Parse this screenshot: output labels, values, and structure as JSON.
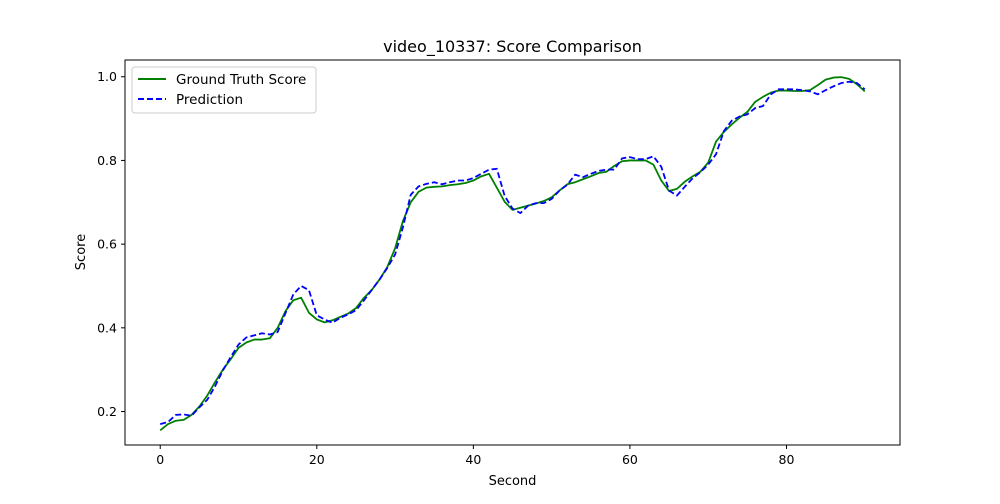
{
  "chart_data": {
    "type": "line",
    "title": "video_10337: Score Comparison",
    "xlabel": "Second",
    "ylabel": "Score",
    "xlim": [
      -4.5,
      94.5
    ],
    "ylim": [
      0.12,
      1.04
    ],
    "xticks": [
      0,
      20,
      40,
      60,
      80
    ],
    "yticks": [
      0.2,
      0.4,
      0.6,
      0.8,
      1.0
    ],
    "xtick_labels": [
      "0",
      "20",
      "40",
      "60",
      "80"
    ],
    "ytick_labels": [
      "0.2",
      "0.4",
      "0.6",
      "0.8",
      "1.0"
    ],
    "grid": false,
    "legend_position": "upper-left",
    "series": [
      {
        "name": "Ground Truth Score",
        "color": "#008000",
        "style": "solid",
        "points": [
          [
            0,
            0.155
          ],
          [
            1,
            0.17
          ],
          [
            2,
            0.178
          ],
          [
            3,
            0.18
          ],
          [
            4,
            0.192
          ],
          [
            5,
            0.212
          ],
          [
            6,
            0.238
          ],
          [
            7,
            0.27
          ],
          [
            8,
            0.3
          ],
          [
            9,
            0.325
          ],
          [
            10,
            0.352
          ],
          [
            11,
            0.365
          ],
          [
            12,
            0.372
          ],
          [
            13,
            0.372
          ],
          [
            14,
            0.375
          ],
          [
            15,
            0.4
          ],
          [
            16,
            0.44
          ],
          [
            17,
            0.466
          ],
          [
            18,
            0.472
          ],
          [
            19,
            0.436
          ],
          [
            20,
            0.42
          ],
          [
            21,
            0.413
          ],
          [
            22,
            0.418
          ],
          [
            23,
            0.426
          ],
          [
            24,
            0.434
          ],
          [
            25,
            0.447
          ],
          [
            26,
            0.471
          ],
          [
            27,
            0.49
          ],
          [
            28,
            0.515
          ],
          [
            29,
            0.545
          ],
          [
            30,
            0.59
          ],
          [
            31,
            0.655
          ],
          [
            32,
            0.7
          ],
          [
            33,
            0.725
          ],
          [
            34,
            0.735
          ],
          [
            35,
            0.737
          ],
          [
            36,
            0.738
          ],
          [
            37,
            0.741
          ],
          [
            38,
            0.743
          ],
          [
            39,
            0.746
          ],
          [
            40,
            0.752
          ],
          [
            41,
            0.762
          ],
          [
            42,
            0.768
          ],
          [
            43,
            0.735
          ],
          [
            44,
            0.701
          ],
          [
            45,
            0.682
          ],
          [
            46,
            0.687
          ],
          [
            47,
            0.692
          ],
          [
            48,
            0.697
          ],
          [
            49,
            0.703
          ],
          [
            50,
            0.712
          ],
          [
            51,
            0.728
          ],
          [
            52,
            0.743
          ],
          [
            53,
            0.748
          ],
          [
            54,
            0.755
          ],
          [
            55,
            0.762
          ],
          [
            56,
            0.77
          ],
          [
            57,
            0.773
          ],
          [
            58,
            0.787
          ],
          [
            59,
            0.798
          ],
          [
            60,
            0.8
          ],
          [
            61,
            0.8
          ],
          [
            62,
            0.8
          ],
          [
            63,
            0.79
          ],
          [
            64,
            0.752
          ],
          [
            65,
            0.727
          ],
          [
            66,
            0.732
          ],
          [
            67,
            0.749
          ],
          [
            68,
            0.762
          ],
          [
            69,
            0.773
          ],
          [
            70,
            0.795
          ],
          [
            71,
            0.845
          ],
          [
            72,
            0.868
          ],
          [
            73,
            0.886
          ],
          [
            74,
            0.902
          ],
          [
            75,
            0.916
          ],
          [
            76,
            0.94
          ],
          [
            77,
            0.952
          ],
          [
            78,
            0.962
          ],
          [
            79,
            0.967
          ],
          [
            80,
            0.967
          ],
          [
            81,
            0.966
          ],
          [
            82,
            0.966
          ],
          [
            83,
            0.968
          ],
          [
            84,
            0.98
          ],
          [
            85,
            0.993
          ],
          [
            86,
            0.998
          ],
          [
            87,
            0.999
          ],
          [
            88,
            0.995
          ],
          [
            89,
            0.982
          ],
          [
            90,
            0.965
          ]
        ]
      },
      {
        "name": "Prediction",
        "color": "#0000ff",
        "style": "dashed",
        "points": [
          [
            0,
            0.17
          ],
          [
            1,
            0.175
          ],
          [
            2,
            0.192
          ],
          [
            3,
            0.193
          ],
          [
            4,
            0.19
          ],
          [
            5,
            0.21
          ],
          [
            6,
            0.228
          ],
          [
            7,
            0.26
          ],
          [
            8,
            0.298
          ],
          [
            9,
            0.33
          ],
          [
            10,
            0.36
          ],
          [
            11,
            0.377
          ],
          [
            12,
            0.382
          ],
          [
            13,
            0.387
          ],
          [
            14,
            0.384
          ],
          [
            15,
            0.39
          ],
          [
            16,
            0.435
          ],
          [
            17,
            0.48
          ],
          [
            18,
            0.5
          ],
          [
            19,
            0.49
          ],
          [
            20,
            0.43
          ],
          [
            21,
            0.42
          ],
          [
            22,
            0.412
          ],
          [
            23,
            0.424
          ],
          [
            24,
            0.432
          ],
          [
            25,
            0.442
          ],
          [
            26,
            0.465
          ],
          [
            27,
            0.49
          ],
          [
            28,
            0.515
          ],
          [
            29,
            0.543
          ],
          [
            30,
            0.575
          ],
          [
            31,
            0.64
          ],
          [
            32,
            0.718
          ],
          [
            33,
            0.738
          ],
          [
            34,
            0.744
          ],
          [
            35,
            0.748
          ],
          [
            36,
            0.743
          ],
          [
            37,
            0.748
          ],
          [
            38,
            0.752
          ],
          [
            39,
            0.752
          ],
          [
            40,
            0.758
          ],
          [
            41,
            0.768
          ],
          [
            42,
            0.778
          ],
          [
            43,
            0.78
          ],
          [
            44,
            0.715
          ],
          [
            45,
            0.685
          ],
          [
            46,
            0.674
          ],
          [
            47,
            0.692
          ],
          [
            48,
            0.698
          ],
          [
            49,
            0.698
          ],
          [
            50,
            0.708
          ],
          [
            51,
            0.728
          ],
          [
            52,
            0.742
          ],
          [
            53,
            0.766
          ],
          [
            54,
            0.76
          ],
          [
            55,
            0.768
          ],
          [
            56,
            0.775
          ],
          [
            57,
            0.778
          ],
          [
            58,
            0.778
          ],
          [
            59,
            0.805
          ],
          [
            60,
            0.808
          ],
          [
            61,
            0.803
          ],
          [
            62,
            0.803
          ],
          [
            63,
            0.81
          ],
          [
            64,
            0.785
          ],
          [
            65,
            0.728
          ],
          [
            66,
            0.716
          ],
          [
            67,
            0.737
          ],
          [
            68,
            0.757
          ],
          [
            69,
            0.772
          ],
          [
            70,
            0.79
          ],
          [
            71,
            0.815
          ],
          [
            72,
            0.87
          ],
          [
            73,
            0.895
          ],
          [
            74,
            0.905
          ],
          [
            75,
            0.91
          ],
          [
            76,
            0.925
          ],
          [
            77,
            0.93
          ],
          [
            78,
            0.958
          ],
          [
            79,
            0.97
          ],
          [
            80,
            0.97
          ],
          [
            81,
            0.97
          ],
          [
            82,
            0.968
          ],
          [
            83,
            0.965
          ],
          [
            84,
            0.958
          ],
          [
            85,
            0.968
          ],
          [
            86,
            0.977
          ],
          [
            87,
            0.985
          ],
          [
            88,
            0.988
          ],
          [
            89,
            0.985
          ],
          [
            90,
            0.97
          ]
        ]
      }
    ]
  }
}
